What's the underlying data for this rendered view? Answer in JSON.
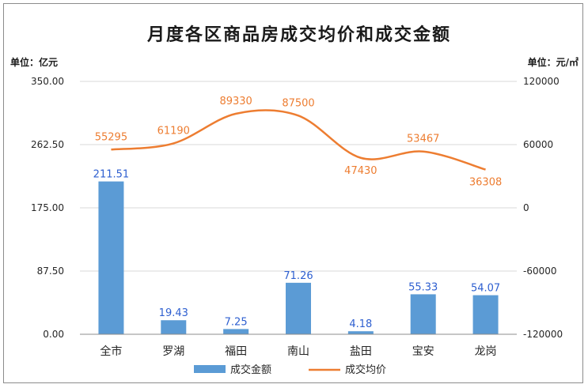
{
  "chart_data": {
    "type": "bar+line",
    "title": "月度各区商品房成交均价和成交金额",
    "left_unit": "单位：亿元",
    "right_unit": "单位：元/㎡",
    "categories": [
      "全市",
      "罗湖",
      "福田",
      "南山",
      "盐田",
      "宝安",
      "龙岗"
    ],
    "left_axis": {
      "ylim": [
        0,
        350
      ],
      "ticks": [
        0,
        87.5,
        175,
        262.5,
        350
      ],
      "tick_labels": [
        "0.00",
        "87.50",
        "175.00",
        "262.50",
        "350.00"
      ]
    },
    "right_axis": {
      "ylim": [
        -120000,
        120000
      ],
      "ticks": [
        -120000,
        -60000,
        0,
        60000,
        120000
      ],
      "tick_labels": [
        "-120000",
        "-60000",
        "0",
        "60000",
        "120000"
      ]
    },
    "series": [
      {
        "name": "成交金额",
        "type": "bar",
        "axis": "left",
        "color": "#5b9bd5",
        "label_color": "#2e5fd0",
        "values": [
          211.51,
          19.43,
          7.25,
          71.26,
          4.18,
          55.33,
          54.07
        ],
        "labels": [
          "211.51",
          "19.43",
          "7.25",
          "71.26",
          "4.18",
          "55.33",
          "54.07"
        ]
      },
      {
        "name": "成交均价",
        "type": "line",
        "axis": "right",
        "smooth": true,
        "color": "#ed7d31",
        "values": [
          55295,
          61190,
          89330,
          87500,
          47430,
          53467,
          36308
        ],
        "labels": [
          "55295",
          "61190",
          "89330",
          "87500",
          "47430",
          "53467",
          "36308"
        ]
      }
    ],
    "legend": {
      "position": "bottom",
      "entries": [
        "成交金额",
        "成交均价"
      ]
    },
    "grid": true
  }
}
